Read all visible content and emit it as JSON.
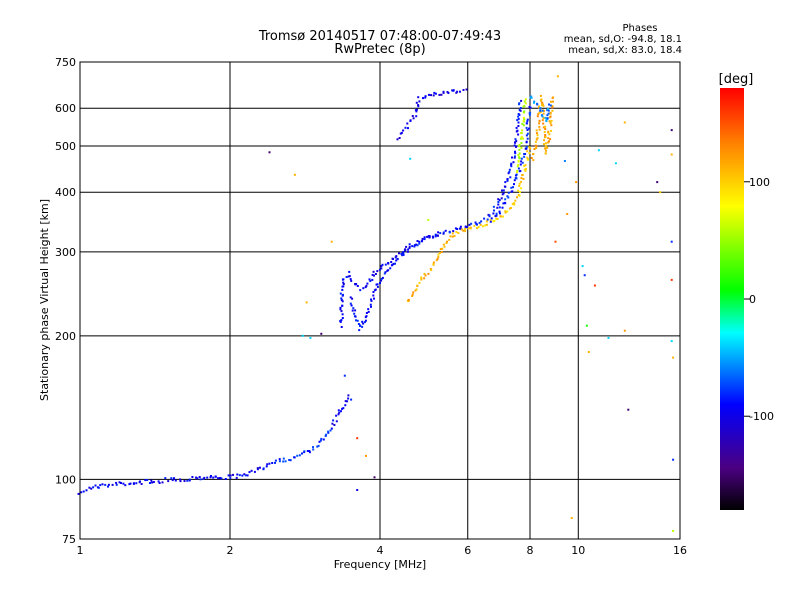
{
  "chart_data": {
    "type": "scatter",
    "title": "Tromsø 20140517 07:48:00-07:49:43",
    "subtitle": "RwPretec (8p)",
    "xlabel": "Frequency [MHz]",
    "ylabel": "Stationary phase Virtual Height [km]",
    "x_scale": "log",
    "y_scale": "log",
    "xlim": [
      1,
      16
    ],
    "ylim": [
      75,
      750
    ],
    "x_ticks": [
      1,
      2,
      4,
      6,
      8,
      10,
      16
    ],
    "x_tick_labels": [
      "1",
      "2",
      "4",
      "6",
      "8",
      "10",
      "16"
    ],
    "y_ticks": [
      75,
      100,
      200,
      300,
      400,
      500,
      600,
      750
    ],
    "y_tick_labels": [
      "75",
      "100",
      "200",
      "300",
      "400",
      "500",
      "600",
      "750"
    ],
    "grid": true,
    "info": {
      "heading": "Phases",
      "line_o": "mean, sd,O: -94.8, 18.1",
      "line_x": "mean, sd,X:  83.0, 18.4"
    },
    "colorbar": {
      "label": "[deg]",
      "range": [
        -180,
        180
      ],
      "ticks": [
        100,
        0,
        -100
      ],
      "tick_labels": [
        "100",
        "0",
        "-100"
      ]
    },
    "traces": [
      {
        "phase": -95,
        "points": [
          [
            1.0,
            94
          ],
          [
            1.05,
            96
          ],
          [
            1.1,
            97
          ],
          [
            1.15,
            97
          ],
          [
            1.2,
            98
          ],
          [
            1.25,
            98
          ],
          [
            1.3,
            98
          ],
          [
            1.35,
            99
          ],
          [
            1.4,
            99
          ],
          [
            1.45,
            99
          ],
          [
            1.5,
            100
          ],
          [
            1.55,
            100
          ],
          [
            1.6,
            100
          ],
          [
            1.65,
            100
          ],
          [
            1.7,
            101
          ],
          [
            1.75,
            101
          ],
          [
            1.8,
            101
          ],
          [
            1.85,
            101
          ],
          [
            1.9,
            101
          ],
          [
            1.95,
            101
          ],
          [
            2.0,
            101
          ],
          [
            2.1,
            102
          ],
          [
            2.2,
            103
          ],
          [
            2.3,
            105
          ],
          [
            2.4,
            108
          ],
          [
            2.5,
            110
          ]
        ]
      },
      {
        "phase": -80,
        "points": [
          [
            2.5,
            110
          ],
          [
            2.6,
            110
          ],
          [
            2.7,
            111
          ],
          [
            2.8,
            113
          ],
          [
            2.9,
            115
          ],
          [
            3.0,
            118
          ],
          [
            3.1,
            123
          ],
          [
            3.15,
            126
          ],
          [
            3.2,
            130
          ]
        ]
      },
      {
        "phase": -95,
        "points": [
          [
            3.2,
            130
          ],
          [
            3.3,
            136
          ],
          [
            3.4,
            145
          ],
          [
            3.5,
            150
          ]
        ]
      },
      {
        "phase": -90,
        "points": [
          [
            3.5,
            240
          ],
          [
            3.55,
            228
          ],
          [
            3.6,
            215
          ],
          [
            3.65,
            207
          ],
          [
            3.7,
            212
          ],
          [
            3.8,
            228
          ],
          [
            3.9,
            245
          ],
          [
            4.0,
            262
          ],
          [
            4.1,
            272
          ],
          [
            4.2,
            280
          ],
          [
            4.3,
            288
          ],
          [
            4.4,
            294
          ],
          [
            4.5,
            300
          ],
          [
            4.6,
            306
          ],
          [
            4.7,
            310
          ],
          [
            4.8,
            314
          ],
          [
            4.9,
            318
          ],
          [
            5.0,
            322
          ],
          [
            5.2,
            327
          ],
          [
            5.4,
            330
          ],
          [
            5.6,
            333
          ],
          [
            5.8,
            336
          ],
          [
            6.0,
            340
          ]
        ]
      },
      {
        "phase": -95,
        "points": [
          [
            3.35,
            210
          ],
          [
            3.35,
            230
          ],
          [
            3.35,
            250
          ],
          [
            3.4,
            265
          ],
          [
            3.45,
            270
          ],
          [
            3.5,
            262
          ],
          [
            3.6,
            255
          ],
          [
            3.7,
            250
          ],
          [
            3.8,
            256
          ],
          [
            3.9,
            270
          ],
          [
            4.0,
            278
          ],
          [
            4.1,
            283
          ],
          [
            4.3,
            292
          ],
          [
            4.5,
            303
          ],
          [
            4.7,
            312
          ],
          [
            4.9,
            318
          ],
          [
            5.1,
            322
          ],
          [
            5.3,
            326
          ]
        ]
      },
      {
        "phase": -100,
        "points": [
          [
            4.35,
            518
          ],
          [
            4.4,
            530
          ],
          [
            4.5,
            545
          ],
          [
            4.6,
            560
          ],
          [
            4.7,
            580
          ],
          [
            4.75,
            610
          ],
          [
            4.8,
            628
          ],
          [
            4.9,
            636
          ],
          [
            5.0,
            640
          ],
          [
            5.2,
            642
          ],
          [
            5.4,
            646
          ],
          [
            5.6,
            650
          ],
          [
            5.8,
            655
          ],
          [
            6.0,
            662
          ]
        ]
      },
      {
        "phase": 110,
        "points": [
          [
            4.55,
            235
          ],
          [
            4.6,
            240
          ],
          [
            4.7,
            250
          ],
          [
            4.8,
            258
          ],
          [
            4.9,
            265
          ],
          [
            5.0,
            272
          ],
          [
            5.1,
            280
          ],
          [
            5.2,
            290
          ],
          [
            5.3,
            300
          ],
          [
            5.4,
            310
          ],
          [
            5.5,
            318
          ],
          [
            5.6,
            325
          ],
          [
            5.8,
            332
          ],
          [
            6.0,
            336
          ]
        ]
      },
      {
        "phase": 100,
        "points": [
          [
            6.0,
            337
          ],
          [
            6.3,
            340
          ],
          [
            6.6,
            345
          ],
          [
            6.9,
            352
          ],
          [
            7.1,
            360
          ],
          [
            7.3,
            372
          ],
          [
            7.5,
            385
          ],
          [
            7.6,
            400
          ],
          [
            7.7,
            420
          ],
          [
            7.8,
            445
          ],
          [
            7.9,
            470
          ],
          [
            8.0,
            500
          ]
        ]
      },
      {
        "phase": -90,
        "points": [
          [
            6.0,
            340
          ],
          [
            6.3,
            345
          ],
          [
            6.6,
            355
          ],
          [
            6.8,
            370
          ],
          [
            7.0,
            390
          ],
          [
            7.1,
            405
          ],
          [
            7.2,
            420
          ],
          [
            7.3,
            440
          ],
          [
            7.4,
            470
          ],
          [
            7.5,
            510
          ],
          [
            7.55,
            550
          ],
          [
            7.6,
            590
          ],
          [
            7.65,
            630
          ]
        ]
      },
      {
        "phase": -85,
        "points": [
          [
            6.7,
            350
          ],
          [
            6.9,
            360
          ],
          [
            7.1,
            380
          ],
          [
            7.3,
            400
          ],
          [
            7.5,
            430
          ],
          [
            7.7,
            460
          ],
          [
            7.8,
            490
          ],
          [
            7.9,
            530
          ],
          [
            7.95,
            570
          ],
          [
            8.0,
            610
          ]
        ]
      },
      {
        "phase": 60,
        "points": [
          [
            7.5,
            440
          ],
          [
            7.6,
            480
          ],
          [
            7.7,
            520
          ],
          [
            7.75,
            560
          ],
          [
            7.8,
            600
          ],
          [
            7.85,
            630
          ]
        ]
      },
      {
        "phase": 115,
        "points": [
          [
            8.1,
            470
          ],
          [
            8.2,
            500
          ],
          [
            8.3,
            540
          ],
          [
            8.35,
            580
          ],
          [
            8.4,
            610
          ],
          [
            8.45,
            635
          ],
          [
            8.6,
            480
          ],
          [
            8.7,
            510
          ],
          [
            8.8,
            560
          ],
          [
            8.85,
            600
          ],
          [
            8.9,
            640
          ]
        ]
      },
      {
        "phase": -60,
        "points": [
          [
            8.0,
            640
          ],
          [
            8.2,
            620
          ],
          [
            8.4,
            600
          ],
          [
            8.6,
            560
          ],
          [
            8.8,
            620
          ]
        ]
      }
    ],
    "scatter": [
      {
        "x": 2.4,
        "y": 485,
        "phase": -150
      },
      {
        "x": 2.7,
        "y": 435,
        "phase": 110
      },
      {
        "x": 2.85,
        "y": 235,
        "phase": 110
      },
      {
        "x": 2.8,
        "y": 200,
        "phase": -40
      },
      {
        "x": 2.9,
        "y": 198,
        "phase": -40
      },
      {
        "x": 3.05,
        "y": 202,
        "phase": -150
      },
      {
        "x": 3.4,
        "y": 165,
        "phase": -80
      },
      {
        "x": 3.5,
        "y": 147,
        "phase": -80
      },
      {
        "x": 3.6,
        "y": 122,
        "phase": 160
      },
      {
        "x": 3.75,
        "y": 112,
        "phase": 120
      },
      {
        "x": 3.9,
        "y": 101,
        "phase": -150
      },
      {
        "x": 3.6,
        "y": 95,
        "phase": -100
      },
      {
        "x": 4.6,
        "y": 470,
        "phase": -40
      },
      {
        "x": 5.0,
        "y": 350,
        "phase": 60
      },
      {
        "x": 3.2,
        "y": 315,
        "phase": 110
      },
      {
        "x": 9.0,
        "y": 315,
        "phase": 150
      },
      {
        "x": 9.1,
        "y": 700,
        "phase": 110
      },
      {
        "x": 9.4,
        "y": 465,
        "phase": -60
      },
      {
        "x": 9.5,
        "y": 360,
        "phase": 120
      },
      {
        "x": 9.7,
        "y": 83,
        "phase": 110
      },
      {
        "x": 9.9,
        "y": 420,
        "phase": 120
      },
      {
        "x": 10.2,
        "y": 280,
        "phase": -40
      },
      {
        "x": 10.3,
        "y": 268,
        "phase": -80
      },
      {
        "x": 10.4,
        "y": 210,
        "phase": 10
      },
      {
        "x": 10.5,
        "y": 185,
        "phase": 110
      },
      {
        "x": 10.8,
        "y": 255,
        "phase": 160
      },
      {
        "x": 11.0,
        "y": 490,
        "phase": -40
      },
      {
        "x": 11.5,
        "y": 198,
        "phase": -40
      },
      {
        "x": 11.9,
        "y": 460,
        "phase": -40
      },
      {
        "x": 12.4,
        "y": 560,
        "phase": 110
      },
      {
        "x": 12.4,
        "y": 205,
        "phase": 120
      },
      {
        "x": 12.6,
        "y": 140,
        "phase": -150
      },
      {
        "x": 14.4,
        "y": 420,
        "phase": -150
      },
      {
        "x": 14.6,
        "y": 400,
        "phase": 100
      },
      {
        "x": 15.4,
        "y": 540,
        "phase": -150
      },
      {
        "x": 15.4,
        "y": 480,
        "phase": 110
      },
      {
        "x": 15.4,
        "y": 315,
        "phase": -80
      },
      {
        "x": 15.4,
        "y": 262,
        "phase": 160
      },
      {
        "x": 15.4,
        "y": 195,
        "phase": -40
      },
      {
        "x": 15.5,
        "y": 180,
        "phase": 110
      },
      {
        "x": 15.5,
        "y": 110,
        "phase": -80
      },
      {
        "x": 15.5,
        "y": 78,
        "phase": 60
      }
    ]
  }
}
